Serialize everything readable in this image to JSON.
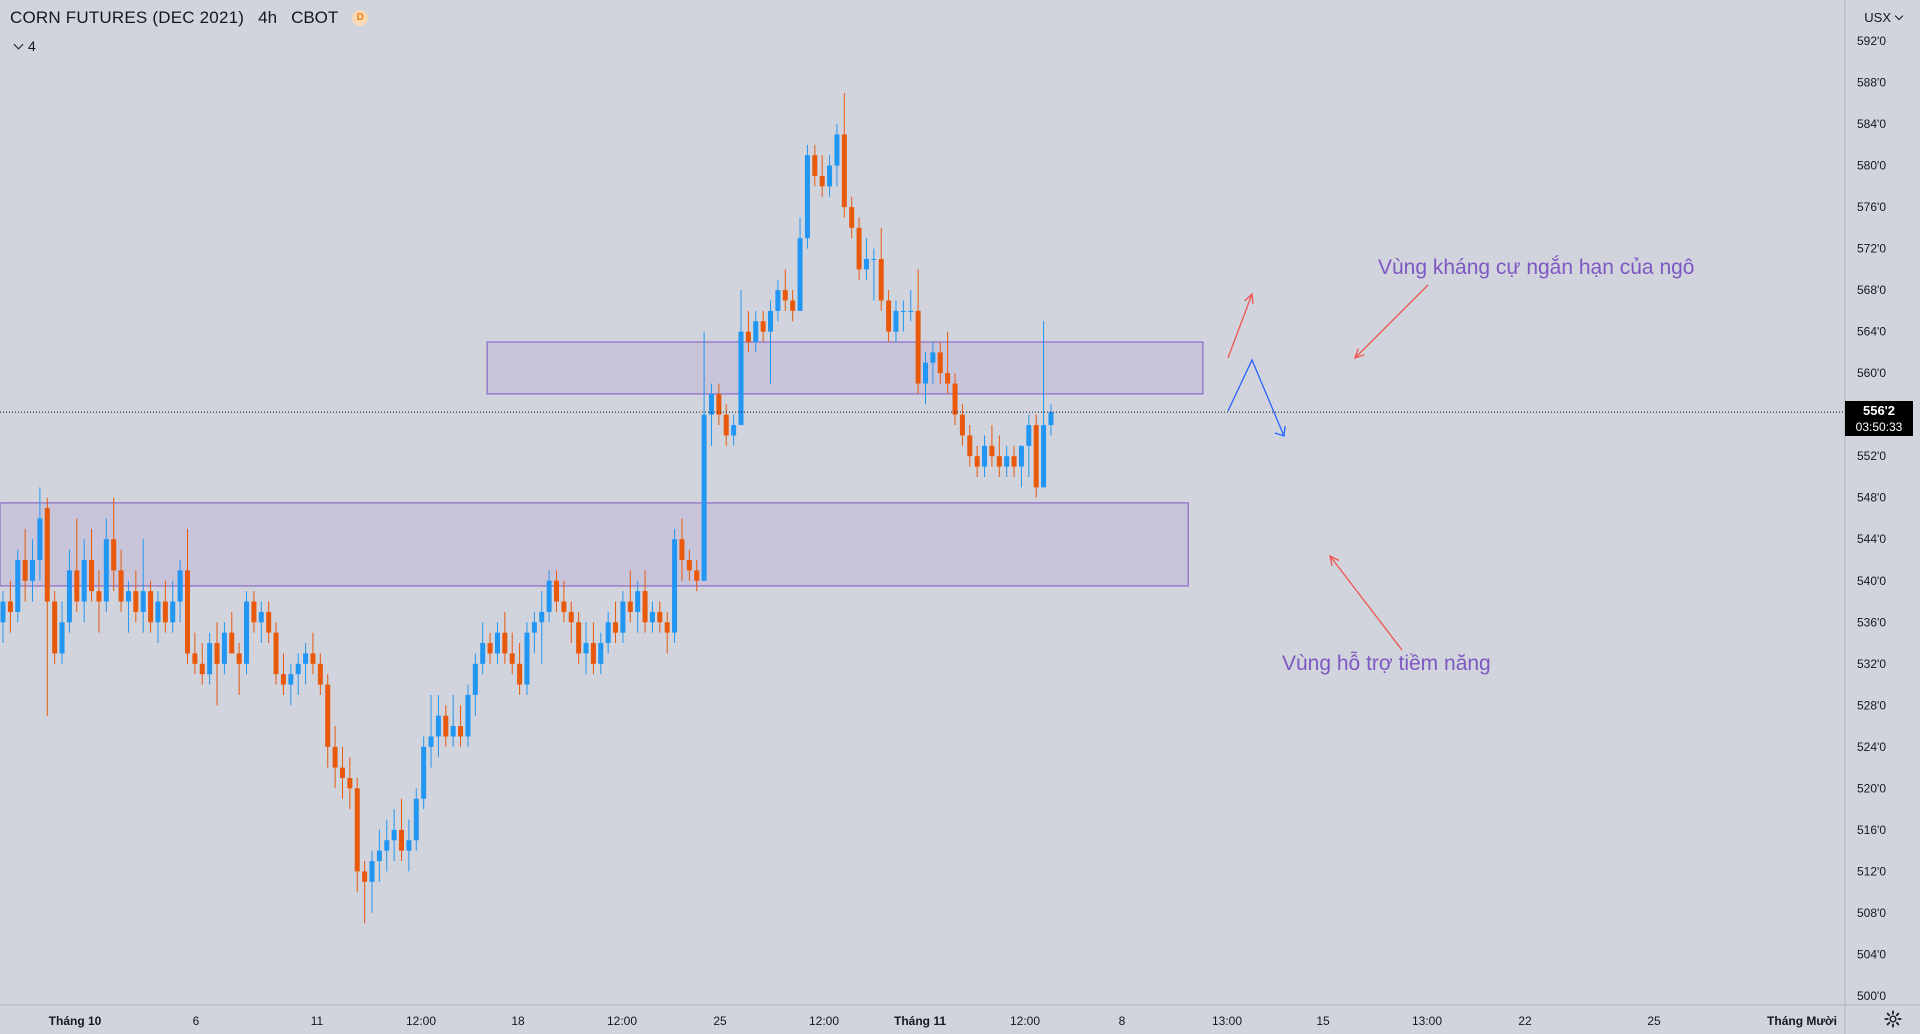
{
  "header": {
    "symbol": "CORN FUTURES (DEC 2021)",
    "interval": "4h",
    "exchange": "CBOT",
    "delay_badge": "D",
    "indicator_count": "4"
  },
  "price_axis": {
    "currency": "USX",
    "ticks": [
      "592'0",
      "588'0",
      "584'0",
      "580'0",
      "576'0",
      "572'0",
      "568'0",
      "564'0",
      "560'0",
      "556'0",
      "552'0",
      "548'0",
      "544'0",
      "540'0",
      "536'0",
      "532'0",
      "528'0",
      "524'0",
      "520'0",
      "516'0",
      "512'0",
      "508'0",
      "504'0",
      "500'0"
    ]
  },
  "last_price": {
    "label": "556'2",
    "value": 556.25,
    "countdown": "03:50:33"
  },
  "colors": {
    "background": "#d1d4dc",
    "up": "#2196f3",
    "down": "#e8590c",
    "zone_fill": "#c4c0db",
    "zone_border": "#7e57c2",
    "annotation_text": "#7e57c2",
    "arrow_red": "#ef5350",
    "arrow_blue": "#2962ff"
  },
  "icons": {
    "settings": "gear-icon",
    "chevron": "chevron-down-icon"
  },
  "chart_data": {
    "type": "candlestick",
    "title": "CORN FUTURES (DEC 2021)",
    "ylim": [
      499,
      594
    ],
    "time_labels": [
      "Tháng 10",
      "6",
      "11",
      "12:00",
      "18",
      "12:00",
      "25",
      "12:00",
      "Tháng 11",
      "12:00",
      "8",
      "13:00",
      "15",
      "13:00",
      "22",
      "25",
      "Tháng Mười"
    ],
    "candles": [
      {
        "o": 536,
        "h": 539,
        "l": 534,
        "c": 538
      },
      {
        "o": 538,
        "h": 540,
        "l": 535,
        "c": 537
      },
      {
        "o": 537,
        "h": 543,
        "l": 536,
        "c": 542
      },
      {
        "o": 542,
        "h": 545,
        "l": 538,
        "c": 540
      },
      {
        "o": 540,
        "h": 544,
        "l": 538,
        "c": 542
      },
      {
        "o": 542,
        "h": 549,
        "l": 540,
        "c": 546
      },
      {
        "o": 547,
        "h": 548,
        "l": 527,
        "c": 538
      },
      {
        "o": 538,
        "h": 539,
        "l": 532,
        "c": 533
      },
      {
        "o": 533,
        "h": 538,
        "l": 532,
        "c": 536
      },
      {
        "o": 536,
        "h": 543,
        "l": 535,
        "c": 541
      },
      {
        "o": 541,
        "h": 546,
        "l": 537,
        "c": 538
      },
      {
        "o": 538,
        "h": 544,
        "l": 536,
        "c": 542
      },
      {
        "o": 542,
        "h": 545,
        "l": 538,
        "c": 539
      },
      {
        "o": 539,
        "h": 541,
        "l": 535,
        "c": 538
      },
      {
        "o": 538,
        "h": 546,
        "l": 537,
        "c": 544
      },
      {
        "o": 544,
        "h": 548,
        "l": 539,
        "c": 541
      },
      {
        "o": 541,
        "h": 543,
        "l": 537,
        "c": 538
      },
      {
        "o": 538,
        "h": 540,
        "l": 535,
        "c": 539
      },
      {
        "o": 539,
        "h": 541,
        "l": 536,
        "c": 537
      },
      {
        "o": 537,
        "h": 544,
        "l": 535,
        "c": 539
      },
      {
        "o": 539,
        "h": 540,
        "l": 535,
        "c": 536
      },
      {
        "o": 536,
        "h": 539,
        "l": 534,
        "c": 538
      },
      {
        "o": 538,
        "h": 540,
        "l": 535,
        "c": 536
      },
      {
        "o": 536,
        "h": 540,
        "l": 535,
        "c": 538
      },
      {
        "o": 538,
        "h": 542,
        "l": 536,
        "c": 541
      },
      {
        "o": 541,
        "h": 545,
        "l": 532,
        "c": 533
      },
      {
        "o": 533,
        "h": 535,
        "l": 531,
        "c": 532
      },
      {
        "o": 532,
        "h": 534,
        "l": 530,
        "c": 531
      },
      {
        "o": 531,
        "h": 535,
        "l": 530,
        "c": 534
      },
      {
        "o": 534,
        "h": 536,
        "l": 528,
        "c": 532
      },
      {
        "o": 532,
        "h": 536,
        "l": 531,
        "c": 535
      },
      {
        "o": 535,
        "h": 537,
        "l": 533,
        "c": 533
      },
      {
        "o": 533,
        "h": 534,
        "l": 529,
        "c": 532
      },
      {
        "o": 532,
        "h": 539,
        "l": 531,
        "c": 538
      },
      {
        "o": 538,
        "h": 539,
        "l": 535,
        "c": 536
      },
      {
        "o": 536,
        "h": 538,
        "l": 534,
        "c": 537
      },
      {
        "o": 537,
        "h": 538,
        "l": 534,
        "c": 535
      },
      {
        "o": 535,
        "h": 536,
        "l": 530,
        "c": 531
      },
      {
        "o": 531,
        "h": 533,
        "l": 529,
        "c": 530
      },
      {
        "o": 530,
        "h": 532,
        "l": 528,
        "c": 531
      },
      {
        "o": 531,
        "h": 533,
        "l": 529,
        "c": 532
      },
      {
        "o": 532,
        "h": 534,
        "l": 530,
        "c": 533
      },
      {
        "o": 533,
        "h": 535,
        "l": 531,
        "c": 532
      },
      {
        "o": 532,
        "h": 533,
        "l": 529,
        "c": 530
      },
      {
        "o": 530,
        "h": 531,
        "l": 522,
        "c": 524
      },
      {
        "o": 524,
        "h": 526,
        "l": 520,
        "c": 522
      },
      {
        "o": 522,
        "h": 524,
        "l": 519,
        "c": 521
      },
      {
        "o": 521,
        "h": 523,
        "l": 518,
        "c": 520
      },
      {
        "o": 520,
        "h": 521,
        "l": 510,
        "c": 512
      },
      {
        "o": 512,
        "h": 513,
        "l": 507,
        "c": 511
      },
      {
        "o": 511,
        "h": 514,
        "l": 508,
        "c": 513
      },
      {
        "o": 513,
        "h": 516,
        "l": 511,
        "c": 514
      },
      {
        "o": 514,
        "h": 517,
        "l": 512,
        "c": 515
      },
      {
        "o": 515,
        "h": 518,
        "l": 513,
        "c": 516
      },
      {
        "o": 516,
        "h": 519,
        "l": 513,
        "c": 514
      },
      {
        "o": 514,
        "h": 517,
        "l": 512,
        "c": 515
      },
      {
        "o": 515,
        "h": 520,
        "l": 514,
        "c": 519
      },
      {
        "o": 519,
        "h": 525,
        "l": 518,
        "c": 524
      },
      {
        "o": 524,
        "h": 529,
        "l": 522,
        "c": 525
      },
      {
        "o": 525,
        "h": 529,
        "l": 523,
        "c": 527
      },
      {
        "o": 527,
        "h": 528,
        "l": 524,
        "c": 525
      },
      {
        "o": 525,
        "h": 529,
        "l": 524,
        "c": 526
      },
      {
        "o": 526,
        "h": 528,
        "l": 524,
        "c": 525
      },
      {
        "o": 525,
        "h": 530,
        "l": 524,
        "c": 529
      },
      {
        "o": 529,
        "h": 533,
        "l": 527,
        "c": 532
      },
      {
        "o": 532,
        "h": 536,
        "l": 531,
        "c": 534
      },
      {
        "o": 534,
        "h": 535,
        "l": 532,
        "c": 533
      },
      {
        "o": 533,
        "h": 536,
        "l": 532,
        "c": 535
      },
      {
        "o": 535,
        "h": 537,
        "l": 532,
        "c": 533
      },
      {
        "o": 533,
        "h": 535,
        "l": 531,
        "c": 532
      },
      {
        "o": 532,
        "h": 534,
        "l": 529,
        "c": 530
      },
      {
        "o": 530,
        "h": 536,
        "l": 529,
        "c": 535
      },
      {
        "o": 535,
        "h": 537,
        "l": 533,
        "c": 536
      },
      {
        "o": 536,
        "h": 539,
        "l": 532,
        "c": 537
      },
      {
        "o": 537,
        "h": 541,
        "l": 536,
        "c": 540
      },
      {
        "o": 540,
        "h": 541,
        "l": 537,
        "c": 538
      },
      {
        "o": 538,
        "h": 540,
        "l": 536,
        "c": 537
      },
      {
        "o": 537,
        "h": 538,
        "l": 534,
        "c": 536
      },
      {
        "o": 536,
        "h": 537,
        "l": 532,
        "c": 533
      },
      {
        "o": 533,
        "h": 536,
        "l": 531,
        "c": 534
      },
      {
        "o": 534,
        "h": 536,
        "l": 531,
        "c": 532
      },
      {
        "o": 532,
        "h": 535,
        "l": 531,
        "c": 534
      },
      {
        "o": 534,
        "h": 537,
        "l": 533,
        "c": 536
      },
      {
        "o": 536,
        "h": 538,
        "l": 534,
        "c": 535
      },
      {
        "o": 535,
        "h": 539,
        "l": 534,
        "c": 538
      },
      {
        "o": 538,
        "h": 541,
        "l": 536,
        "c": 537
      },
      {
        "o": 537,
        "h": 540,
        "l": 535,
        "c": 539
      },
      {
        "o": 539,
        "h": 541,
        "l": 535,
        "c": 536
      },
      {
        "o": 536,
        "h": 538,
        "l": 535,
        "c": 537
      },
      {
        "o": 537,
        "h": 538,
        "l": 535,
        "c": 536
      },
      {
        "o": 536,
        "h": 537,
        "l": 533,
        "c": 535
      },
      {
        "o": 535,
        "h": 545,
        "l": 534,
        "c": 544
      },
      {
        "o": 544,
        "h": 546,
        "l": 540,
        "c": 542
      },
      {
        "o": 542,
        "h": 543,
        "l": 540,
        "c": 541
      },
      {
        "o": 541,
        "h": 542,
        "l": 539,
        "c": 540
      },
      {
        "o": 540,
        "h": 564,
        "l": 540,
        "c": 556
      },
      {
        "o": 556,
        "h": 559,
        "l": 553,
        "c": 558
      },
      {
        "o": 558,
        "h": 559,
        "l": 555,
        "c": 556
      },
      {
        "o": 556,
        "h": 557,
        "l": 553,
        "c": 554
      },
      {
        "o": 554,
        "h": 556,
        "l": 553,
        "c": 555
      },
      {
        "o": 555,
        "h": 568,
        "l": 555,
        "c": 564
      },
      {
        "o": 564,
        "h": 566,
        "l": 562,
        "c": 563
      },
      {
        "o": 563,
        "h": 566,
        "l": 562,
        "c": 565
      },
      {
        "o": 565,
        "h": 566,
        "l": 563,
        "c": 564
      },
      {
        "o": 564,
        "h": 567,
        "l": 559,
        "c": 566
      },
      {
        "o": 566,
        "h": 569,
        "l": 565,
        "c": 568
      },
      {
        "o": 568,
        "h": 570,
        "l": 566,
        "c": 567
      },
      {
        "o": 567,
        "h": 568,
        "l": 565,
        "c": 566
      },
      {
        "o": 566,
        "h": 575,
        "l": 566,
        "c": 573
      },
      {
        "o": 573,
        "h": 582,
        "l": 572,
        "c": 581
      },
      {
        "o": 581,
        "h": 582,
        "l": 578,
        "c": 579
      },
      {
        "o": 579,
        "h": 581,
        "l": 577,
        "c": 578
      },
      {
        "o": 578,
        "h": 581,
        "l": 577,
        "c": 580
      },
      {
        "o": 580,
        "h": 584,
        "l": 578,
        "c": 583
      },
      {
        "o": 583,
        "h": 587,
        "l": 575,
        "c": 576
      },
      {
        "o": 576,
        "h": 577,
        "l": 573,
        "c": 574
      },
      {
        "o": 574,
        "h": 575,
        "l": 569,
        "c": 570
      },
      {
        "o": 570,
        "h": 573,
        "l": 569,
        "c": 571
      },
      {
        "o": 571,
        "h": 572,
        "l": 567,
        "c": 571
      },
      {
        "o": 571,
        "h": 574,
        "l": 566,
        "c": 567
      },
      {
        "o": 567,
        "h": 568,
        "l": 563,
        "c": 564
      },
      {
        "o": 564,
        "h": 567,
        "l": 563,
        "c": 566
      },
      {
        "o": 566,
        "h": 567,
        "l": 564,
        "c": 566
      },
      {
        "o": 566,
        "h": 568,
        "l": 565,
        "c": 566
      },
      {
        "o": 566,
        "h": 570,
        "l": 558,
        "c": 559
      },
      {
        "o": 559,
        "h": 562,
        "l": 557,
        "c": 561
      },
      {
        "o": 561,
        "h": 563,
        "l": 559,
        "c": 562
      },
      {
        "o": 562,
        "h": 563,
        "l": 559,
        "c": 560
      },
      {
        "o": 560,
        "h": 564,
        "l": 558,
        "c": 559
      },
      {
        "o": 559,
        "h": 560,
        "l": 555,
        "c": 556
      },
      {
        "o": 556,
        "h": 557,
        "l": 553,
        "c": 554
      },
      {
        "o": 554,
        "h": 555,
        "l": 551,
        "c": 552
      },
      {
        "o": 552,
        "h": 553,
        "l": 550,
        "c": 551
      },
      {
        "o": 551,
        "h": 554,
        "l": 550,
        "c": 553
      },
      {
        "o": 553,
        "h": 555,
        "l": 551,
        "c": 552
      },
      {
        "o": 552,
        "h": 554,
        "l": 550,
        "c": 551
      },
      {
        "o": 551,
        "h": 553,
        "l": 550,
        "c": 552
      },
      {
        "o": 552,
        "h": 553,
        "l": 550,
        "c": 551
      },
      {
        "o": 551,
        "h": 553,
        "l": 549,
        "c": 553
      },
      {
        "o": 553,
        "h": 556,
        "l": 550,
        "c": 555
      },
      {
        "o": 555,
        "h": 556,
        "l": 548,
        "c": 549
      },
      {
        "o": 549,
        "h": 565,
        "l": 549,
        "c": 555
      },
      {
        "o": 555,
        "h": 557,
        "l": 554,
        "c": 556.25
      }
    ],
    "zones": [
      {
        "name": "resistance",
        "from_index": 66,
        "to_index": 163,
        "y_low": 558.0,
        "y_high": 563.0
      },
      {
        "name": "support",
        "from_index": -10,
        "to_index": 161,
        "y_low": 539.5,
        "y_high": 547.5
      }
    ],
    "annotations": [
      {
        "text": "Vùng kháng cự ngắn hạn của ngô",
        "target": "resistance"
      },
      {
        "text": "Vùng hỗ trợ tiềm năng",
        "target": "support"
      }
    ]
  }
}
